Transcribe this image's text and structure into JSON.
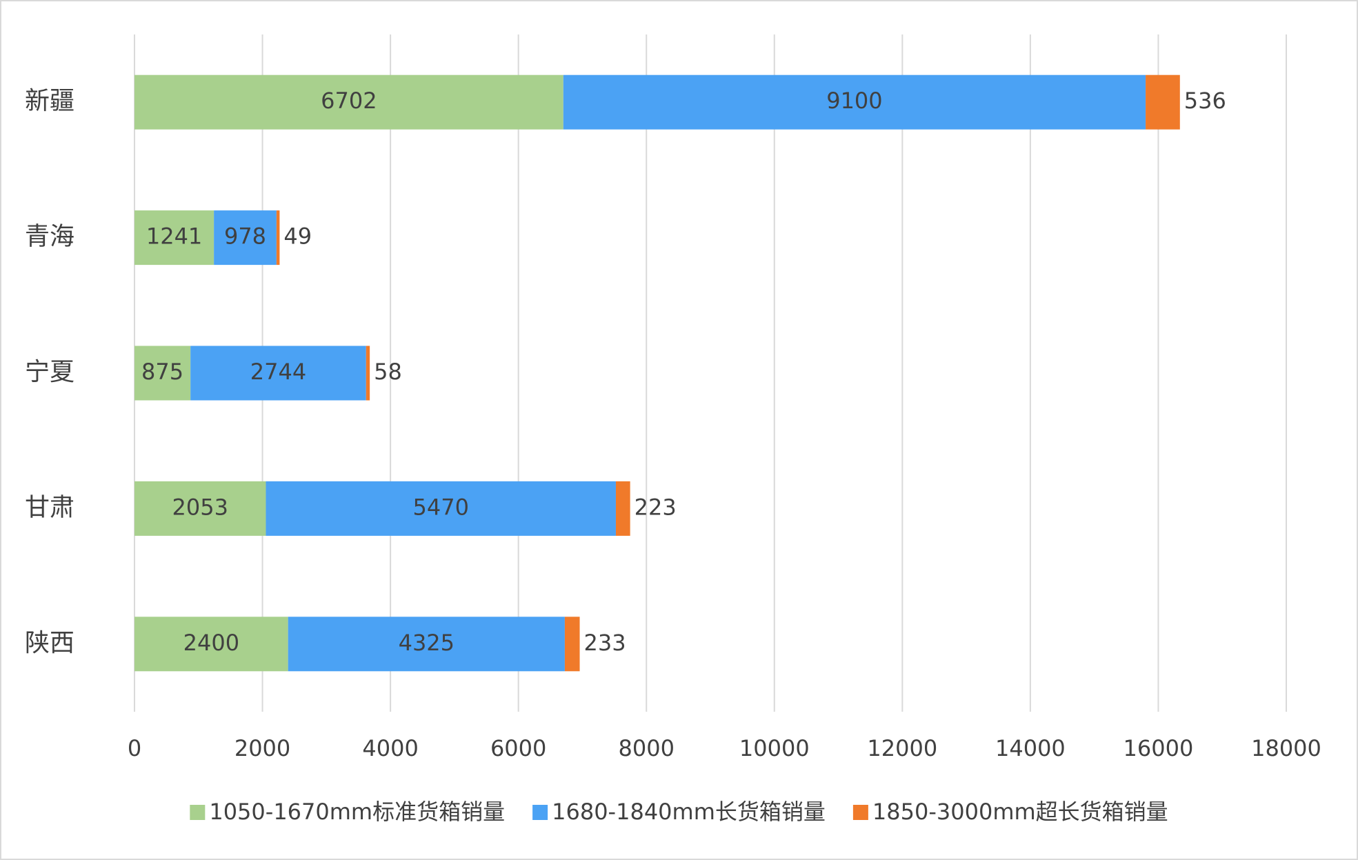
{
  "chart_data": {
    "type": "stacked-barh",
    "categories": [
      "新疆",
      "青海",
      "宁夏",
      "甘肃",
      "陕西"
    ],
    "series": [
      {
        "name": "1050-1670mm标准货箱销量",
        "color": "#a8d08d",
        "values": [
          6702,
          1241,
          875,
          2053,
          2400
        ]
      },
      {
        "name": "1680-1840mm长货箱销量",
        "color": "#4ba2f4",
        "values": [
          9100,
          978,
          2744,
          5470,
          4325
        ]
      },
      {
        "name": "1850-3000mm超长货箱销量",
        "color": "#f07a2a",
        "values": [
          536,
          49,
          58,
          223,
          233
        ]
      }
    ],
    "xlim": [
      0,
      18000
    ],
    "xticks": [
      0,
      2000,
      4000,
      6000,
      8000,
      10000,
      12000,
      14000,
      16000,
      18000
    ],
    "grid": true,
    "legend": "bottom"
  }
}
